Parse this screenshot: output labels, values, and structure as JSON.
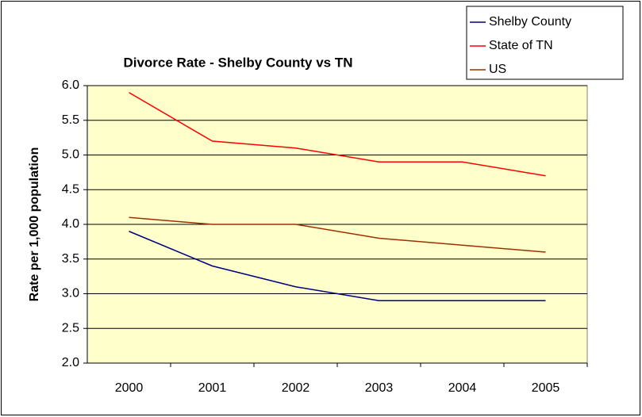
{
  "chart_data": {
    "type": "line",
    "title": "Divorce Rate - Shelby County vs TN",
    "y_label": "Rate per 1,000 population",
    "categories": [
      "2000",
      "2001",
      "2002",
      "2003",
      "2004",
      "2005"
    ],
    "series": [
      {
        "name": "Shelby County",
        "color": "#000080",
        "values": [
          3.9,
          3.4,
          3.1,
          2.9,
          2.9,
          2.9
        ]
      },
      {
        "name": "State of TN",
        "color": "#ff0000",
        "values": [
          5.9,
          5.2,
          5.1,
          4.9,
          4.9,
          4.7
        ]
      },
      {
        "name": "US",
        "color": "#993300",
        "values": [
          4.1,
          4.0,
          4.0,
          3.8,
          3.7,
          3.6
        ]
      }
    ],
    "ylim": [
      2,
      6
    ],
    "yticks": [
      {
        "value": 2,
        "label": "2.0"
      },
      {
        "value": 2.5,
        "label": "2.5"
      },
      {
        "value": 3,
        "label": "3.0"
      },
      {
        "value": 3.5,
        "label": "3.5"
      },
      {
        "value": 4,
        "label": "4.0"
      },
      {
        "value": 4.5,
        "label": "4.5"
      },
      {
        "value": 5,
        "label": "5.0"
      },
      {
        "value": 5.5,
        "label": "5.5"
      },
      {
        "value": 6,
        "label": "6.0"
      }
    ],
    "grid": true,
    "legend": "top-right",
    "plot_background": "#ffffcc"
  }
}
